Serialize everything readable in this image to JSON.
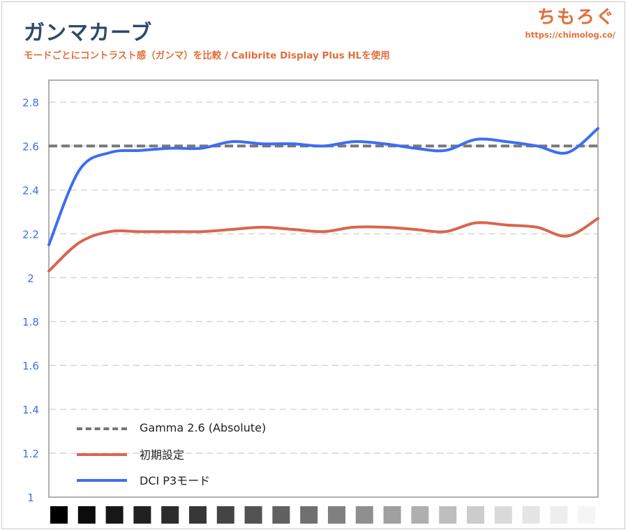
{
  "header": {
    "title": "ガンマカーブ",
    "subtitle": "モードごとにコントラスト感（ガンマ）を比較 / Calibrite Display Plus HLを使用"
  },
  "logo": {
    "text": "ちもろぐ",
    "url": "https://chimolog.co/"
  },
  "chart_data": {
    "type": "line",
    "ylim": [
      1,
      2.9
    ],
    "yticks": [
      "1",
      "1.2",
      "1.4",
      "1.6",
      "1.8",
      "2",
      "2.2",
      "2.4",
      "2.6",
      "2.8"
    ],
    "ytick_values": [
      1,
      1.2,
      1.4,
      1.6,
      1.8,
      2,
      2.2,
      2.4,
      2.6,
      2.8
    ],
    "grid": true,
    "legend_position": "bottom-left",
    "x_steps": 20,
    "series": [
      {
        "name": "Gamma 2.6 (Absolute)",
        "style": "dashed",
        "color": "#777777",
        "values": [
          2.6,
          2.6,
          2.6,
          2.6,
          2.6,
          2.6,
          2.6,
          2.6,
          2.6,
          2.6,
          2.6,
          2.6,
          2.6,
          2.6,
          2.6,
          2.6,
          2.6,
          2.6,
          2.6,
          2.6,
          2.6
        ]
      },
      {
        "name": "初期設定",
        "style": "solid",
        "color": "#d9664f",
        "values": [
          2.03,
          2.16,
          2.21,
          2.21,
          2.21,
          2.21,
          2.22,
          2.23,
          2.22,
          2.21,
          2.23,
          2.23,
          2.22,
          2.21,
          2.25,
          2.24,
          2.23,
          2.19,
          2.27
        ]
      },
      {
        "name": "DCI P3モード",
        "style": "solid",
        "color": "#3d6ef0",
        "values": [
          2.15,
          2.49,
          2.57,
          2.58,
          2.59,
          2.59,
          2.62,
          2.61,
          2.61,
          2.6,
          2.62,
          2.61,
          2.59,
          2.58,
          2.63,
          2.62,
          2.6,
          2.57,
          2.68
        ]
      }
    ],
    "gray_ramp": [
      "#000000",
      "#0c0c0c",
      "#171717",
      "#212121",
      "#2c2c2c",
      "#373737",
      "#444444",
      "#525252",
      "#616161",
      "#707070",
      "#808080",
      "#8f8f8f",
      "#9f9f9f",
      "#afafaf",
      "#bebebe",
      "#cccccc",
      "#dadada",
      "#e5e5e5",
      "#eeeeee",
      "#f5f5f5"
    ]
  }
}
